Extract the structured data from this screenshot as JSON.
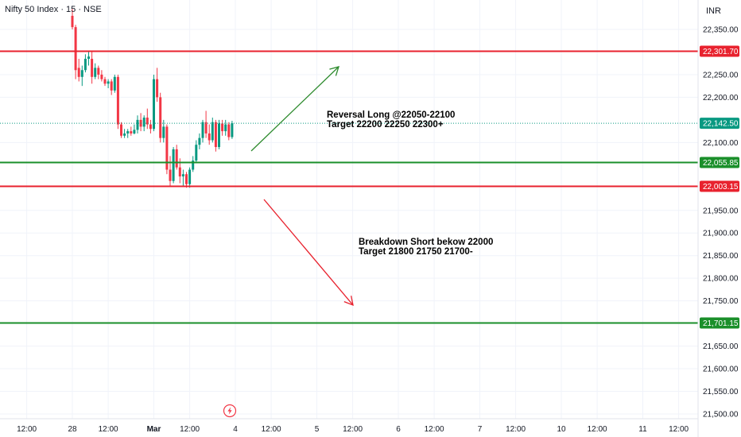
{
  "header": {
    "title": "Nifty 50 Index · 15 · NSE",
    "currency": "INR"
  },
  "colors": {
    "up": "#089981",
    "down": "#f23645",
    "resistance": "#e8222e",
    "support": "#1a8f2a",
    "long_arrow": "#2e8b2e",
    "short_arrow": "#e8222e",
    "last_price_tag": "#089981",
    "grid": "#f0f3fa",
    "axis_text": "#131722"
  },
  "chart_data": {
    "type": "candlestick",
    "y_axis": {
      "range": [
        21490,
        22390
      ],
      "ticks": [
        22350,
        22250,
        22200,
        22100,
        21950,
        21900,
        21850,
        21800,
        21750,
        21650,
        21600,
        21550,
        21500
      ],
      "tick_labels": [
        "22,350.00",
        "22,250.00",
        "22,200.00",
        "22,100.00",
        "21,950.00",
        "21,900.00",
        "21,850.00",
        "21,800.00",
        "21,750.00",
        "21,650.00",
        "21,600.00",
        "21,550.00",
        "21,500.00"
      ]
    },
    "x_axis": {
      "tick_labels": [
        "12:00",
        "28",
        "12:00",
        "Mar",
        "12:00",
        "4",
        "12:00",
        "5",
        "12:00",
        "6",
        "12:00",
        "7",
        "12:00",
        "10",
        "12:00",
        "11",
        "12:00"
      ],
      "tick_bar_index": [
        -14,
        0,
        11,
        25,
        36,
        50,
        61,
        75,
        86,
        100,
        111,
        125,
        136,
        150,
        161,
        175,
        186
      ]
    },
    "candles": [
      {
        "o": 22380,
        "h": 22395,
        "l": 22350,
        "c": 22355
      },
      {
        "o": 22355,
        "h": 22360,
        "l": 22240,
        "c": 22260
      },
      {
        "o": 22265,
        "h": 22285,
        "l": 22235,
        "c": 22245
      },
      {
        "o": 22245,
        "h": 22270,
        "l": 22225,
        "c": 22260
      },
      {
        "o": 22260,
        "h": 22295,
        "l": 22255,
        "c": 22285
      },
      {
        "o": 22285,
        "h": 22300,
        "l": 22270,
        "c": 22290
      },
      {
        "o": 22285,
        "h": 22300,
        "l": 22230,
        "c": 22245
      },
      {
        "o": 22245,
        "h": 22275,
        "l": 22240,
        "c": 22265
      },
      {
        "o": 22265,
        "h": 22270,
        "l": 22240,
        "c": 22250
      },
      {
        "o": 22250,
        "h": 22260,
        "l": 22235,
        "c": 22240
      },
      {
        "o": 22240,
        "h": 22245,
        "l": 22225,
        "c": 22230
      },
      {
        "o": 22230,
        "h": 22240,
        "l": 22220,
        "c": 22235
      },
      {
        "o": 22235,
        "h": 22240,
        "l": 22205,
        "c": 22215
      },
      {
        "o": 22215,
        "h": 22250,
        "l": 22210,
        "c": 22245
      },
      {
        "o": 22245,
        "h": 22250,
        "l": 22130,
        "c": 22140
      },
      {
        "o": 22140,
        "h": 22145,
        "l": 22110,
        "c": 22115
      },
      {
        "o": 22115,
        "h": 22130,
        "l": 22110,
        "c": 22120
      },
      {
        "o": 22120,
        "h": 22130,
        "l": 22110,
        "c": 22125
      },
      {
        "o": 22125,
        "h": 22135,
        "l": 22115,
        "c": 22120
      },
      {
        "o": 22120,
        "h": 22140,
        "l": 22118,
        "c": 22128
      },
      {
        "o": 22128,
        "h": 22160,
        "l": 22120,
        "c": 22150
      },
      {
        "o": 22150,
        "h": 22165,
        "l": 22125,
        "c": 22135
      },
      {
        "o": 22135,
        "h": 22160,
        "l": 22125,
        "c": 22155
      },
      {
        "o": 22155,
        "h": 22175,
        "l": 22130,
        "c": 22140
      },
      {
        "o": 22140,
        "h": 22150,
        "l": 22120,
        "c": 22130
      },
      {
        "o": 22130,
        "h": 22250,
        "l": 22125,
        "c": 22240
      },
      {
        "o": 22240,
        "h": 22265,
        "l": 22190,
        "c": 22200
      },
      {
        "o": 22200,
        "h": 22210,
        "l": 22100,
        "c": 22110
      },
      {
        "o": 22110,
        "h": 22150,
        "l": 22100,
        "c": 22135
      },
      {
        "o": 22135,
        "h": 22140,
        "l": 22030,
        "c": 22040
      },
      {
        "o": 22040,
        "h": 22070,
        "l": 22005,
        "c": 22015
      },
      {
        "o": 22015,
        "h": 22090,
        "l": 22010,
        "c": 22085
      },
      {
        "o": 22085,
        "h": 22095,
        "l": 22040,
        "c": 22045
      },
      {
        "o": 22045,
        "h": 22065,
        "l": 22010,
        "c": 22025
      },
      {
        "o": 22025,
        "h": 22040,
        "l": 22003,
        "c": 22030
      },
      {
        "o": 22030,
        "h": 22035,
        "l": 22000,
        "c": 22008
      },
      {
        "o": 22008,
        "h": 22045,
        "l": 22000,
        "c": 22040
      },
      {
        "o": 22040,
        "h": 22070,
        "l": 22035,
        "c": 22060
      },
      {
        "o": 22060,
        "h": 22105,
        "l": 22055,
        "c": 22095
      },
      {
        "o": 22095,
        "h": 22120,
        "l": 22085,
        "c": 22110
      },
      {
        "o": 22110,
        "h": 22150,
        "l": 22100,
        "c": 22145
      },
      {
        "o": 22145,
        "h": 22170,
        "l": 22110,
        "c": 22120
      },
      {
        "o": 22120,
        "h": 22140,
        "l": 22095,
        "c": 22105
      },
      {
        "o": 22105,
        "h": 22155,
        "l": 22100,
        "c": 22145
      },
      {
        "o": 22145,
        "h": 22150,
        "l": 22080,
        "c": 22090
      },
      {
        "o": 22090,
        "h": 22150,
        "l": 22085,
        "c": 22142
      },
      {
        "o": 22142,
        "h": 22150,
        "l": 22115,
        "c": 22125
      },
      {
        "o": 22125,
        "h": 22150,
        "l": 22115,
        "c": 22140
      },
      {
        "o": 22140,
        "h": 22145,
        "l": 22105,
        "c": 22112
      },
      {
        "o": 22112,
        "h": 22148,
        "l": 22108,
        "c": 22142.5
      }
    ],
    "last_price": {
      "value": 22142.5,
      "label": "22,142.50"
    },
    "levels": [
      {
        "name": "resistance-upper",
        "value": 22301.7,
        "label": "22,301.70",
        "kind": "resistance"
      },
      {
        "name": "support-upper",
        "value": 22055.85,
        "label": "22,055.85",
        "kind": "support"
      },
      {
        "name": "resistance-lower",
        "value": 22003.15,
        "label": "22,003.15",
        "kind": "resistance"
      },
      {
        "name": "support-lower",
        "value": 21701.15,
        "label": "21,701.15",
        "kind": "support"
      }
    ],
    "annotations": {
      "long": {
        "line1": "Reversal Long @22050-22100",
        "line2": "Target 22200 22250 22300+"
      },
      "short": {
        "line1": "Breakdown Short bekow 22000",
        "line2": "Target 21800 21750 21700-"
      }
    }
  }
}
